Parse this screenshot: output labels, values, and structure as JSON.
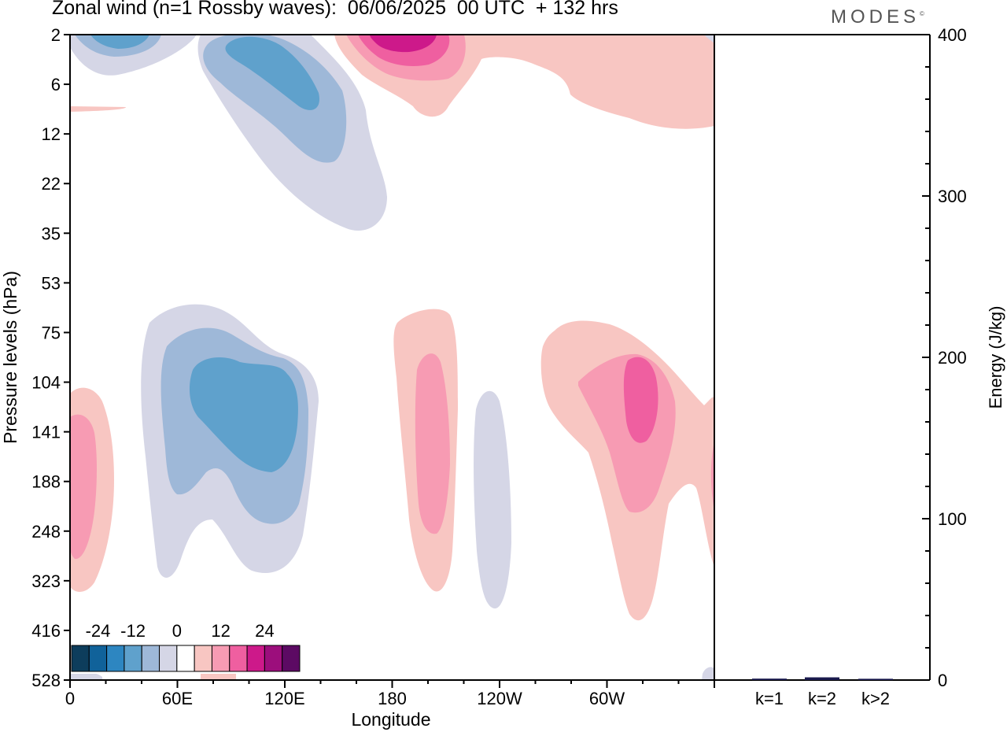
{
  "title": "Zonal wind (n=1 Rossby waves):  06/06/2025  00 UTC  + 132 hrs",
  "logo": "MODES",
  "chart_data": [
    {
      "type": "heatmap",
      "title": "Zonal wind (n=1 Rossby waves):  06/06/2025  00 UTC  + 132 hrs",
      "xlabel": "Longitude",
      "ylabel": "Pressure levels (hPa)",
      "x_ticks": [
        "0",
        "60E",
        "120E",
        "180",
        "120W",
        "60W"
      ],
      "y_ticks": [
        "2",
        "6",
        "12",
        "22",
        "35",
        "53",
        "75",
        "104",
        "141",
        "188",
        "248",
        "323",
        "416",
        "528"
      ],
      "colorbar": {
        "ticks": [
          "-24",
          "-12",
          "0",
          "12",
          "24"
        ],
        "levels": [
          -30,
          -25,
          -20,
          -15,
          -10,
          -5,
          0,
          5,
          10,
          15,
          20,
          25,
          30
        ],
        "colors": [
          "#0d3d5c",
          "#10629a",
          "#2d86c1",
          "#5fa1cc",
          "#9eb8d8",
          "#d5d6e6",
          "#ffffff",
          "#f8c6c2",
          "#f79bb3",
          "#ef5fa0",
          "#cd198a",
          "#9c0e7c",
          "#5c0a63"
        ]
      },
      "features": [
        {
          "center_lon": 25,
          "center_level": "2",
          "value_min": -10
        },
        {
          "center_lon": 105,
          "center_level": "12",
          "value_min": -10
        },
        {
          "center_lon": 112,
          "center_level": "141",
          "value_min": -15
        },
        {
          "center_lon": 185,
          "center_level": "2",
          "value_max": 20
        },
        {
          "center_lon": 195,
          "center_level": "141",
          "value_max": 10
        },
        {
          "center_lon": 228,
          "center_level": "188",
          "value_min": -5
        },
        {
          "center_lon": 285,
          "center_level": "104",
          "value_max": 15
        },
        {
          "center_lon": 5,
          "center_level": "188",
          "value_max": 10
        }
      ]
    },
    {
      "type": "bar",
      "ylabel": "Energy (J/kg)",
      "categories": [
        "k=1",
        "k=2",
        "k>2"
      ],
      "values": [
        0.4,
        1.2,
        0.3
      ],
      "ylim": [
        0,
        400
      ],
      "y_ticks": [
        "0",
        "100",
        "200",
        "300",
        "400"
      ],
      "bar_color": "#1a1a4e"
    }
  ]
}
